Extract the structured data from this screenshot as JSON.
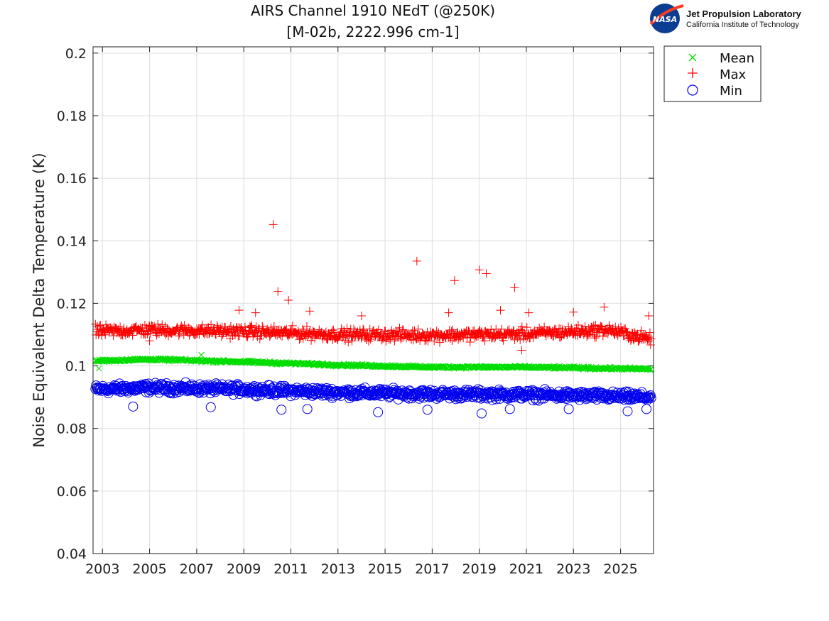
{
  "chart_data": {
    "type": "scatter",
    "title": "AIRS Channel 1910 NEdT (@250K)",
    "subtitle": "[M-02b, 2222.996 cm-1]",
    "ylabel": "Noise Equivalent Delta Temperature (K)",
    "xlabel": "",
    "xlim": [
      2002.6,
      2026.4
    ],
    "ylim": [
      0.04,
      0.202
    ],
    "xticks": [
      "2003",
      "2005",
      "2007",
      "2009",
      "2011",
      "2013",
      "2015",
      "2017",
      "2019",
      "2021",
      "2023",
      "2025"
    ],
    "xtick_values": [
      2003,
      2005,
      2007,
      2009,
      2011,
      2013,
      2015,
      2017,
      2019,
      2021,
      2023,
      2025
    ],
    "yticks": [
      "0.04",
      "0.06",
      "0.08",
      "0.1",
      "0.12",
      "0.14",
      "0.16",
      "0.18",
      "0.2"
    ],
    "ytick_values": [
      0.04,
      0.06,
      0.08,
      0.1,
      0.12,
      0.14,
      0.16,
      0.18,
      0.2
    ],
    "grid": true,
    "legend_position": "outside-top-right",
    "series": [
      {
        "name": "Mean",
        "marker": "x",
        "color": "#00dd00",
        "trend": [
          [
            2002.7,
            0.1016
          ],
          [
            2005.0,
            0.1021
          ],
          [
            2009.0,
            0.1013
          ],
          [
            2013.0,
            0.1003
          ],
          [
            2017.0,
            0.0996
          ],
          [
            2021.0,
            0.0996
          ],
          [
            2026.3,
            0.099
          ]
        ],
        "spread": 0.0006,
        "outliers": [
          [
            2002.85,
            0.0992
          ],
          [
            2007.2,
            0.1035
          ],
          [
            2004.5,
            0.1023
          ]
        ]
      },
      {
        "name": "Max",
        "marker": "+",
        "color": "#ff0000",
        "trend": [
          [
            2002.7,
            0.111
          ],
          [
            2005.0,
            0.1115
          ],
          [
            2009.0,
            0.111
          ],
          [
            2013.0,
            0.11
          ],
          [
            2017.0,
            0.1098
          ],
          [
            2021.0,
            0.1102
          ],
          [
            2024.5,
            0.1115
          ],
          [
            2026.3,
            0.1085
          ]
        ],
        "spread": 0.0028,
        "outliers": [
          [
            2010.25,
            0.1452
          ],
          [
            2010.45,
            0.1238
          ],
          [
            2010.9,
            0.121
          ],
          [
            2016.35,
            0.1335
          ],
          [
            2017.95,
            0.1273
          ],
          [
            2019.0,
            0.1307
          ],
          [
            2019.3,
            0.1295
          ],
          [
            2020.5,
            0.125
          ],
          [
            2008.8,
            0.1178
          ],
          [
            2009.5,
            0.117
          ],
          [
            2011.8,
            0.1175
          ],
          [
            2014.0,
            0.116
          ],
          [
            2017.7,
            0.117
          ],
          [
            2019.9,
            0.1178
          ],
          [
            2021.1,
            0.117
          ],
          [
            2023.0,
            0.1172
          ],
          [
            2024.3,
            0.1188
          ],
          [
            2026.2,
            0.116
          ],
          [
            2020.8,
            0.105
          ],
          [
            2005.0,
            0.108
          ]
        ]
      },
      {
        "name": "Min",
        "marker": "o",
        "color": "#0000ee",
        "trend": [
          [
            2002.7,
            0.0925
          ],
          [
            2005.0,
            0.093
          ],
          [
            2009.0,
            0.0925
          ],
          [
            2013.0,
            0.0915
          ],
          [
            2017.0,
            0.091
          ],
          [
            2021.0,
            0.0908
          ],
          [
            2026.3,
            0.09
          ]
        ],
        "spread": 0.0022,
        "outliers": [
          [
            2014.7,
            0.0852
          ],
          [
            2019.1,
            0.0848
          ],
          [
            2010.6,
            0.086
          ],
          [
            2004.3,
            0.087
          ],
          [
            2007.6,
            0.0868
          ],
          [
            2011.7,
            0.0862
          ],
          [
            2016.8,
            0.086
          ],
          [
            2020.3,
            0.0862
          ],
          [
            2025.3,
            0.0855
          ],
          [
            2026.1,
            0.0862
          ],
          [
            2022.8,
            0.0862
          ]
        ]
      }
    ]
  },
  "logo": {
    "badge_text": "NASA",
    "line1": "Jet Propulsion Laboratory",
    "line2": "California Institute of Technology"
  },
  "colors": {
    "mean": "#00dd00",
    "max": "#ff0000",
    "min": "#0000ee",
    "grid": "#dedede",
    "axes": "#222222"
  }
}
